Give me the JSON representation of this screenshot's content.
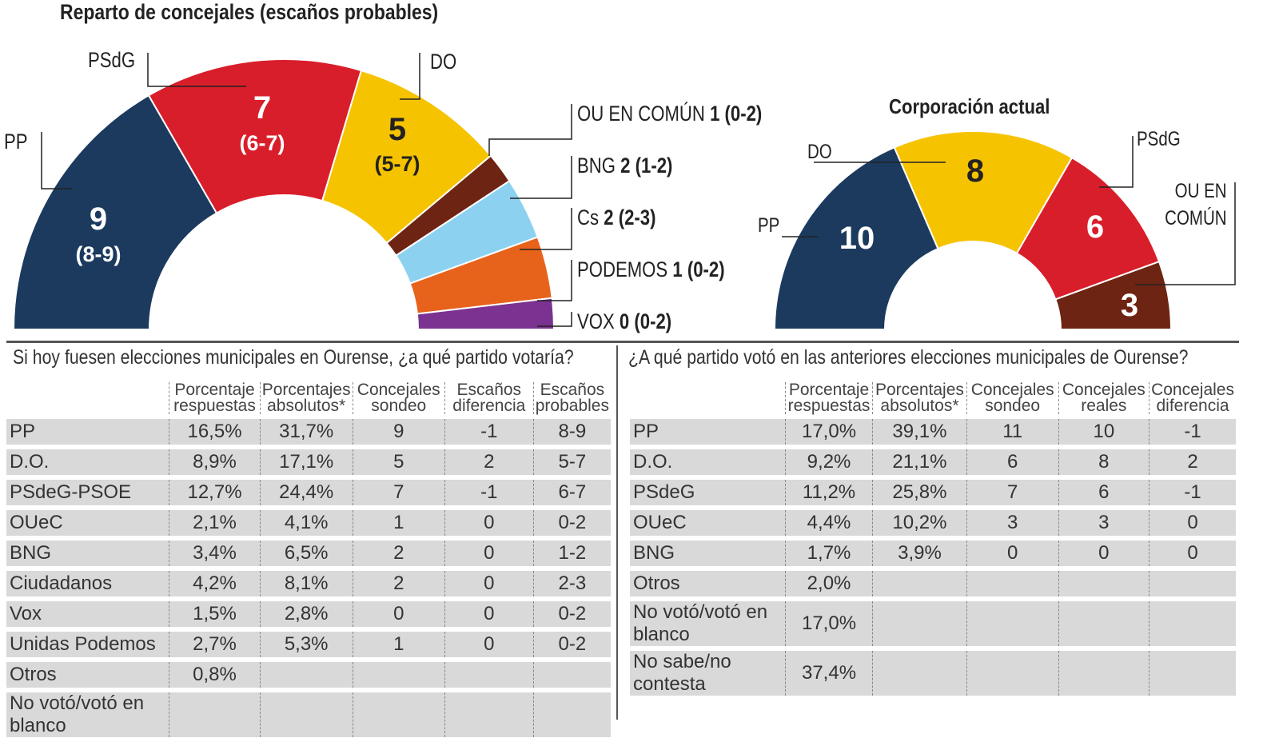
{
  "chart_data": [
    {
      "type": "semicircle-parliament",
      "title": "Reparto de concejales (escaños probables)",
      "parties": [
        {
          "name": "PP",
          "seats": 9,
          "range": "(8-9)",
          "color": "#1b3a5e"
        },
        {
          "name": "PSdG",
          "seats": 7,
          "range": "(6-7)",
          "color": "#d81e2a"
        },
        {
          "name": "DO",
          "seats": 5,
          "range": "(5-7)",
          "color": "#f6c300"
        },
        {
          "name": "OU EN COMÚN",
          "seats": 1,
          "range": "(0-2)",
          "color": "#6e2412"
        },
        {
          "name": "BNG",
          "seats": 2,
          "range": "(1-2)",
          "color": "#8dd1f0"
        },
        {
          "name": "Cs",
          "seats": 2,
          "range": "(2-3)",
          "color": "#e7631c"
        },
        {
          "name": "PODEMOS",
          "seats": 1,
          "range": "(0-2)",
          "color": "#7b3290"
        },
        {
          "name": "VOX",
          "seats": 0,
          "range": "(0-2)",
          "color": "#7b3290"
        }
      ]
    },
    {
      "type": "semicircle-parliament",
      "title": "Corporación actual",
      "parties": [
        {
          "name": "PP",
          "seats": 10,
          "color": "#1b3a5e"
        },
        {
          "name": "DO",
          "seats": 8,
          "color": "#f6c300"
        },
        {
          "name": "PSdG",
          "seats": 6,
          "color": "#d81e2a"
        },
        {
          "name": "OU EN COMÚN",
          "seats": 3,
          "color": "#6e2412"
        }
      ]
    }
  ],
  "left_table": {
    "question": "Si hoy fuesen elecciones municipales en Ourense, ¿a qué partido votaría?",
    "headers": [
      [
        "Porcentaje",
        "respuestas"
      ],
      [
        "Porcentajes",
        "absolutos*"
      ],
      [
        "Concejales",
        "sondeo"
      ],
      [
        "Escaños",
        "diferencia"
      ],
      [
        "Escaños",
        "probables"
      ]
    ],
    "rows": [
      [
        "PP",
        "16,5%",
        "31,7%",
        "9",
        "-1",
        "8-9"
      ],
      [
        "D.O.",
        "8,9%",
        "17,1%",
        "5",
        "2",
        "5-7"
      ],
      [
        "PSdeG-PSOE",
        "12,7%",
        "24,4%",
        "7",
        "-1",
        "6-7"
      ],
      [
        "OUeC",
        "2,1%",
        "4,1%",
        "1",
        "0",
        "0-2"
      ],
      [
        "BNG",
        "3,4%",
        "6,5%",
        "2",
        "0",
        "1-2"
      ],
      [
        "Ciudadanos",
        "4,2%",
        "8,1%",
        "2",
        "0",
        "2-3"
      ],
      [
        "Vox",
        "1,5%",
        "2,8%",
        "0",
        "0",
        "0-2"
      ],
      [
        "Unidas Podemos",
        "2,7%",
        "5,3%",
        "1",
        "0",
        "0-2"
      ],
      [
        "Otros",
        "0,8%",
        "",
        "",
        "",
        ""
      ],
      [
        "No votó/votó en blanco",
        "",
        "",
        "",
        "",
        ""
      ]
    ]
  },
  "right_table": {
    "question": "¿A qué partido votó en las anteriores elecciones municipales de Ourense?",
    "headers": [
      [
        "Porcentaje",
        "respuestas"
      ],
      [
        "Porcentajes",
        "absolutos*"
      ],
      [
        "Concejales",
        "sondeo"
      ],
      [
        "Concejales",
        "reales"
      ],
      [
        "Concejales",
        "diferencia"
      ]
    ],
    "rows": [
      [
        "PP",
        "17,0%",
        "39,1%",
        "11",
        "10",
        "-1"
      ],
      [
        "D.O.",
        "9,2%",
        "21,1%",
        "6",
        "8",
        "2"
      ],
      [
        "PSdeG",
        "11,2%",
        "25,8%",
        "7",
        "6",
        "-1"
      ],
      [
        "OUeC",
        "4,4%",
        "10,2%",
        "3",
        "3",
        "0"
      ],
      [
        "BNG",
        "1,7%",
        "3,9%",
        "0",
        "0",
        "0"
      ],
      [
        "Otros",
        "2,0%",
        "",
        "",
        "",
        ""
      ],
      [
        "No votó/votó en blanco",
        "17,0%",
        "",
        "",
        "",
        ""
      ],
      [
        "No sabe/no contesta",
        "37,4%",
        "",
        "",
        "",
        ""
      ]
    ]
  }
}
